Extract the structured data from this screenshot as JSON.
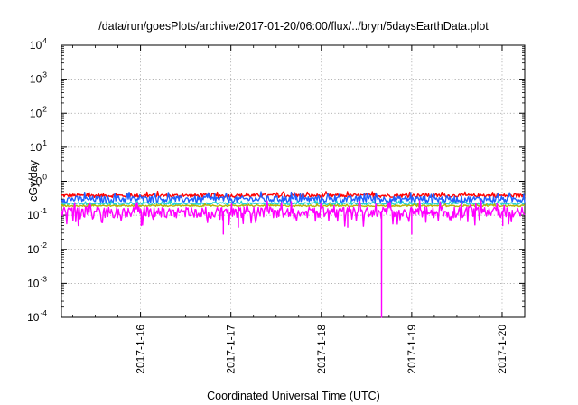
{
  "chart_data": {
    "type": "line",
    "title": "/data/run/goesPlots/archive/2017-01-20/06:00/flux/../bryn/5daysEarthData.plot",
    "xlabel": "Coordinated Universal Time (UTC)",
    "ylabel": "cGy/day",
    "x_range": [
      "2017-01-15T03:00",
      "2017-01-20T06:00"
    ],
    "x_ticks": [
      {
        "date": "2017-01-16T00:00",
        "label": "2017-1-16"
      },
      {
        "date": "2017-01-17T00:00",
        "label": "2017-1-17"
      },
      {
        "date": "2017-01-18T00:00",
        "label": "2017-1-18"
      },
      {
        "date": "2017-01-19T00:00",
        "label": "2017-1-19"
      },
      {
        "date": "2017-01-20T00:00",
        "label": "2017-1-20"
      }
    ],
    "y_scale": "log",
    "ylim": [
      0.0001,
      10000
    ],
    "y_ticks": [
      {
        "value": 0.0001,
        "base": "10",
        "exp": "-4"
      },
      {
        "value": 0.001,
        "base": "10",
        "exp": "-3"
      },
      {
        "value": 0.01,
        "base": "10",
        "exp": "-2"
      },
      {
        "value": 0.1,
        "base": "10",
        "exp": "-1"
      },
      {
        "value": 1,
        "base": "10",
        "exp": "0"
      },
      {
        "value": 10,
        "base": "10",
        "exp": "1"
      },
      {
        "value": 100,
        "base": "10",
        "exp": "2"
      },
      {
        "value": 1000,
        "base": "10",
        "exp": "3"
      },
      {
        "value": 10000,
        "base": "10",
        "exp": "4"
      }
    ],
    "grid": true,
    "legend": "none",
    "series": [
      {
        "color": "#ff0000",
        "typical": 0.38,
        "spread": 0.12
      },
      {
        "color": "#1f5fff",
        "typical": 0.3,
        "spread": 0.22
      },
      {
        "color": "#22d3d3",
        "typical": 0.22,
        "spread": 0.08
      },
      {
        "color": "#b8b400",
        "typical": 0.19,
        "spread": 0.05
      },
      {
        "color": "#ff00ff",
        "typical": 0.13,
        "spread": 0.35
      }
    ],
    "spikes": [
      {
        "series": 4,
        "date": "2017-01-16T00:10",
        "value": 0.05
      },
      {
        "series": 4,
        "date": "2017-01-16T22:00",
        "value": 0.028
      },
      {
        "series": 4,
        "date": "2017-01-17T02:00",
        "value": 0.045
      },
      {
        "series": 4,
        "date": "2017-01-18T07:00",
        "value": 0.045
      },
      {
        "series": 4,
        "date": "2017-01-18T16:00",
        "value": 0.0001
      },
      {
        "series": 4,
        "date": "2017-01-19T00:00",
        "value": 0.028
      },
      {
        "series": 4,
        "date": "2017-01-20T00:10",
        "value": 0.05
      }
    ]
  }
}
